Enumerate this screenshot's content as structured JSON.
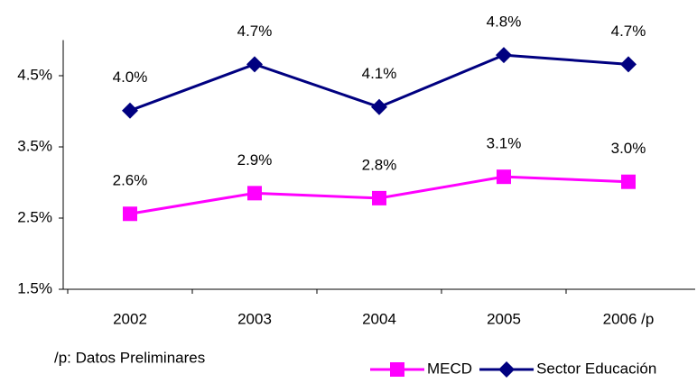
{
  "chart_data": {
    "type": "line",
    "categories": [
      "2002",
      "2003",
      "2004",
      "2005",
      "2006 /p"
    ],
    "series": [
      {
        "name": "MECD",
        "color": "#ff00ff",
        "marker": "square",
        "values": [
          2.56,
          2.85,
          2.78,
          3.08,
          3.01
        ],
        "value_labels": [
          "2.6%",
          "2.9%",
          "2.8%",
          "3.1%",
          "3.0%"
        ]
      },
      {
        "name": "Sector Educación",
        "color": "#000080",
        "marker": "diamond",
        "values": [
          4.01,
          4.66,
          4.06,
          4.79,
          4.66
        ],
        "value_labels": [
          "4.0%",
          "4.7%",
          "4.1%",
          "4.8%",
          "4.7%"
        ]
      }
    ],
    "ylim": [
      1.5,
      5.0
    ],
    "yticks": [
      {
        "value": 1.5,
        "label": "1.5%"
      },
      {
        "value": 2.5,
        "label": "2.5%"
      },
      {
        "value": 3.5,
        "label": "3.5%"
      },
      {
        "value": 4.5,
        "label": "4.5%"
      }
    ],
    "grid": false,
    "legend": "bottom-right",
    "footnote": "/p: Datos Preliminares"
  }
}
